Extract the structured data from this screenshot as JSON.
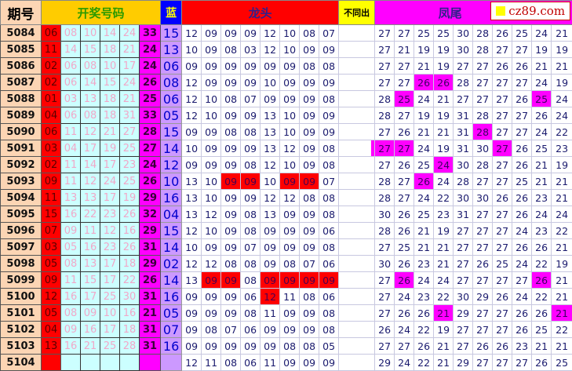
{
  "header": {
    "issue": "期号",
    "draw": "开奖号码",
    "blue": "蓝",
    "dragon": "龙头",
    "diff": "不同出",
    "phoenix": "凤尾",
    "logo": "cz89.com"
  },
  "colors": {
    "red": "#ff0000",
    "magenta": "#ff00ff",
    "lightblue": "#ccffff",
    "lavender": "#cc99ff",
    "peach": "#fcd5b4",
    "gold": "#ffcc00"
  },
  "rows": [
    {
      "issue": "5084",
      "first": "06",
      "mid": [
        "08",
        "10",
        "14",
        "24"
      ],
      "last": "33",
      "blue": "15",
      "dragon": [
        "12",
        "09",
        "09",
        "09",
        "12",
        "10",
        "08",
        "07"
      ],
      "dragon_hl": [],
      "phoenix": [
        "27",
        "27",
        "25",
        "25",
        "30",
        "28",
        "26",
        "25",
        "24",
        "21"
      ],
      "phoenix_hl": []
    },
    {
      "issue": "5085",
      "first": "11",
      "mid": [
        "14",
        "15",
        "18",
        "21"
      ],
      "last": "24",
      "blue": "13",
      "dragon": [
        "10",
        "09",
        "08",
        "03",
        "12",
        "10",
        "09",
        "09"
      ],
      "dragon_hl": [],
      "phoenix": [
        "27",
        "21",
        "19",
        "19",
        "30",
        "28",
        "27",
        "27",
        "19",
        "19"
      ],
      "phoenix_hl": []
    },
    {
      "issue": "5086",
      "first": "02",
      "mid": [
        "06",
        "08",
        "10",
        "17"
      ],
      "last": "24",
      "blue": "06",
      "dragon": [
        "09",
        "09",
        "09",
        "09",
        "09",
        "09",
        "08",
        "08"
      ],
      "dragon_hl": [],
      "phoenix": [
        "27",
        "27",
        "21",
        "19",
        "27",
        "27",
        "26",
        "26",
        "21",
        "21"
      ],
      "phoenix_hl": []
    },
    {
      "issue": "5087",
      "first": "02",
      "mid": [
        "06",
        "14",
        "15",
        "24"
      ],
      "last": "26",
      "blue": "08",
      "dragon": [
        "12",
        "09",
        "09",
        "09",
        "10",
        "09",
        "09",
        "09"
      ],
      "dragon_hl": [],
      "phoenix": [
        "27",
        "27",
        "26",
        "26",
        "28",
        "27",
        "27",
        "27",
        "24",
        "19"
      ],
      "phoenix_hl": [
        2,
        3
      ]
    },
    {
      "issue": "5088",
      "first": "01",
      "mid": [
        "03",
        "13",
        "18",
        "21"
      ],
      "last": "25",
      "blue": "06",
      "dragon": [
        "12",
        "10",
        "08",
        "07",
        "09",
        "09",
        "09",
        "08"
      ],
      "dragon_hl": [],
      "phoenix": [
        "28",
        "25",
        "24",
        "21",
        "27",
        "27",
        "27",
        "26",
        "25",
        "24"
      ],
      "phoenix_hl": [
        1,
        8
      ]
    },
    {
      "issue": "5089",
      "first": "04",
      "mid": [
        "06",
        "08",
        "18",
        "31"
      ],
      "last": "33",
      "blue": "05",
      "dragon": [
        "12",
        "10",
        "09",
        "09",
        "13",
        "10",
        "09",
        "09"
      ],
      "dragon_hl": [],
      "phoenix": [
        "28",
        "27",
        "19",
        "19",
        "31",
        "28",
        "27",
        "27",
        "26",
        "24"
      ],
      "phoenix_hl": []
    },
    {
      "issue": "5090",
      "first": "06",
      "mid": [
        "11",
        "12",
        "21",
        "27"
      ],
      "last": "28",
      "blue": "15",
      "dragon": [
        "09",
        "09",
        "08",
        "08",
        "13",
        "10",
        "09",
        "09"
      ],
      "dragon_hl": [],
      "phoenix": [
        "27",
        "26",
        "21",
        "21",
        "31",
        "28",
        "27",
        "27",
        "24",
        "22"
      ],
      "phoenix_hl": [
        5
      ]
    },
    {
      "issue": "5091",
      "first": "03",
      "mid": [
        "04",
        "17",
        "19",
        "25"
      ],
      "last": "27",
      "blue": "14",
      "dragon": [
        "10",
        "09",
        "09",
        "09",
        "13",
        "12",
        "09",
        "08"
      ],
      "dragon_hl": [],
      "phoenix": [
        "27",
        "27",
        "24",
        "19",
        "31",
        "30",
        "27",
        "26",
        "25",
        "23"
      ],
      "phoenix_hl": [
        0,
        1,
        6
      ]
    },
    {
      "issue": "5092",
      "first": "02",
      "mid": [
        "11",
        "14",
        "17",
        "23"
      ],
      "last": "24",
      "blue": "12",
      "dragon": [
        "09",
        "09",
        "09",
        "08",
        "12",
        "10",
        "09",
        "08"
      ],
      "dragon_hl": [],
      "phoenix": [
        "27",
        "26",
        "25",
        "24",
        "30",
        "28",
        "27",
        "26",
        "21",
        "19"
      ],
      "phoenix_hl": [
        3
      ]
    },
    {
      "issue": "5093",
      "first": "09",
      "mid": [
        "11",
        "12",
        "24",
        "25"
      ],
      "last": "26",
      "blue": "10",
      "dragon": [
        "13",
        "10",
        "09",
        "09",
        "10",
        "09",
        "09",
        "07"
      ],
      "dragon_hl": [
        2,
        3,
        5,
        6
      ],
      "phoenix": [
        "28",
        "27",
        "26",
        "24",
        "28",
        "27",
        "27",
        "25",
        "21",
        "21"
      ],
      "phoenix_hl": [
        2
      ]
    },
    {
      "issue": "5094",
      "first": "11",
      "mid": [
        "13",
        "13",
        "17",
        "19"
      ],
      "last": "29",
      "blue": "16",
      "dragon": [
        "13",
        "10",
        "09",
        "09",
        "12",
        "12",
        "08",
        "08"
      ],
      "dragon_hl": [],
      "phoenix": [
        "28",
        "27",
        "24",
        "22",
        "30",
        "30",
        "26",
        "26",
        "23",
        "21"
      ],
      "phoenix_hl": []
    },
    {
      "issue": "5095",
      "first": "15",
      "mid": [
        "16",
        "22",
        "23",
        "26"
      ],
      "last": "32",
      "blue": "04",
      "dragon": [
        "13",
        "12",
        "09",
        "08",
        "13",
        "09",
        "09",
        "08"
      ],
      "dragon_hl": [],
      "phoenix": [
        "30",
        "26",
        "25",
        "23",
        "31",
        "27",
        "27",
        "26",
        "24",
        "24"
      ],
      "phoenix_hl": []
    },
    {
      "issue": "5096",
      "first": "07",
      "mid": [
        "09",
        "11",
        "12",
        "16"
      ],
      "last": "29",
      "blue": "15",
      "dragon": [
        "12",
        "10",
        "09",
        "08",
        "09",
        "09",
        "09",
        "06"
      ],
      "dragon_hl": [],
      "phoenix": [
        "28",
        "26",
        "21",
        "19",
        "27",
        "27",
        "27",
        "24",
        "23",
        "22"
      ],
      "phoenix_hl": []
    },
    {
      "issue": "5097",
      "first": "03",
      "mid": [
        "05",
        "16",
        "23",
        "26"
      ],
      "last": "31",
      "blue": "14",
      "dragon": [
        "10",
        "09",
        "09",
        "07",
        "09",
        "09",
        "09",
        "08"
      ],
      "dragon_hl": [],
      "phoenix": [
        "27",
        "25",
        "21",
        "21",
        "27",
        "27",
        "27",
        "26",
        "26",
        "21"
      ],
      "phoenix_hl": []
    },
    {
      "issue": "5098",
      "first": "05",
      "mid": [
        "08",
        "13",
        "17",
        "18"
      ],
      "last": "29",
      "blue": "02",
      "dragon": [
        "12",
        "12",
        "08",
        "08",
        "09",
        "08",
        "07",
        "06"
      ],
      "dragon_hl": [],
      "phoenix": [
        "30",
        "26",
        "23",
        "21",
        "27",
        "26",
        "25",
        "24",
        "22",
        "19"
      ],
      "phoenix_hl": []
    },
    {
      "issue": "5099",
      "first": "09",
      "mid": [
        "11",
        "15",
        "17",
        "22"
      ],
      "last": "26",
      "blue": "14",
      "dragon": [
        "13",
        "09",
        "09",
        "08",
        "09",
        "09",
        "09",
        "09"
      ],
      "dragon_hl": [
        1,
        2,
        4,
        5,
        6,
        7
      ],
      "phoenix": [
        "27",
        "26",
        "24",
        "24",
        "27",
        "27",
        "27",
        "27",
        "26",
        "21"
      ],
      "phoenix_hl": [
        1,
        8
      ]
    },
    {
      "issue": "5100",
      "first": "12",
      "mid": [
        "16",
        "17",
        "25",
        "30"
      ],
      "last": "31",
      "blue": "16",
      "dragon": [
        "09",
        "09",
        "09",
        "06",
        "12",
        "11",
        "08",
        "06"
      ],
      "dragon_hl": [
        4
      ],
      "phoenix": [
        "27",
        "24",
        "23",
        "22",
        "30",
        "29",
        "26",
        "24",
        "22",
        "21"
      ],
      "phoenix_hl": []
    },
    {
      "issue": "5101",
      "first": "05",
      "mid": [
        "08",
        "09",
        "10",
        "16"
      ],
      "last": "21",
      "blue": "05",
      "dragon": [
        "09",
        "09",
        "09",
        "08",
        "11",
        "09",
        "09",
        "08"
      ],
      "dragon_hl": [],
      "phoenix": [
        "27",
        "26",
        "26",
        "21",
        "29",
        "27",
        "27",
        "26",
        "26",
        "21"
      ],
      "phoenix_hl": [
        3,
        9
      ]
    },
    {
      "issue": "5102",
      "first": "04",
      "mid": [
        "09",
        "16",
        "17",
        "18"
      ],
      "last": "31",
      "blue": "07",
      "dragon": [
        "09",
        "08",
        "07",
        "06",
        "09",
        "09",
        "09",
        "08"
      ],
      "dragon_hl": [],
      "phoenix": [
        "26",
        "24",
        "22",
        "19",
        "27",
        "27",
        "27",
        "26",
        "25",
        "22"
      ],
      "phoenix_hl": []
    },
    {
      "issue": "5103",
      "first": "13",
      "mid": [
        "16",
        "21",
        "25",
        "28"
      ],
      "last": "31",
      "blue": "16",
      "dragon": [
        "09",
        "09",
        "09",
        "09",
        "09",
        "08",
        "08",
        "05"
      ],
      "dragon_hl": [],
      "phoenix": [
        "27",
        "27",
        "26",
        "21",
        "27",
        "26",
        "26",
        "23",
        "21",
        "21"
      ],
      "phoenix_hl": []
    },
    {
      "issue": "5104",
      "first": "",
      "mid": [
        "",
        "",
        "",
        ""
      ],
      "last": "",
      "blue": "",
      "dragon": [
        "12",
        "11",
        "08",
        "06",
        "11",
        "09",
        "09",
        "09"
      ],
      "dragon_hl": [],
      "phoenix": [
        "29",
        "24",
        "22",
        "21",
        "29",
        "27",
        "27",
        "27",
        "26",
        "25"
      ],
      "phoenix_hl": []
    }
  ]
}
